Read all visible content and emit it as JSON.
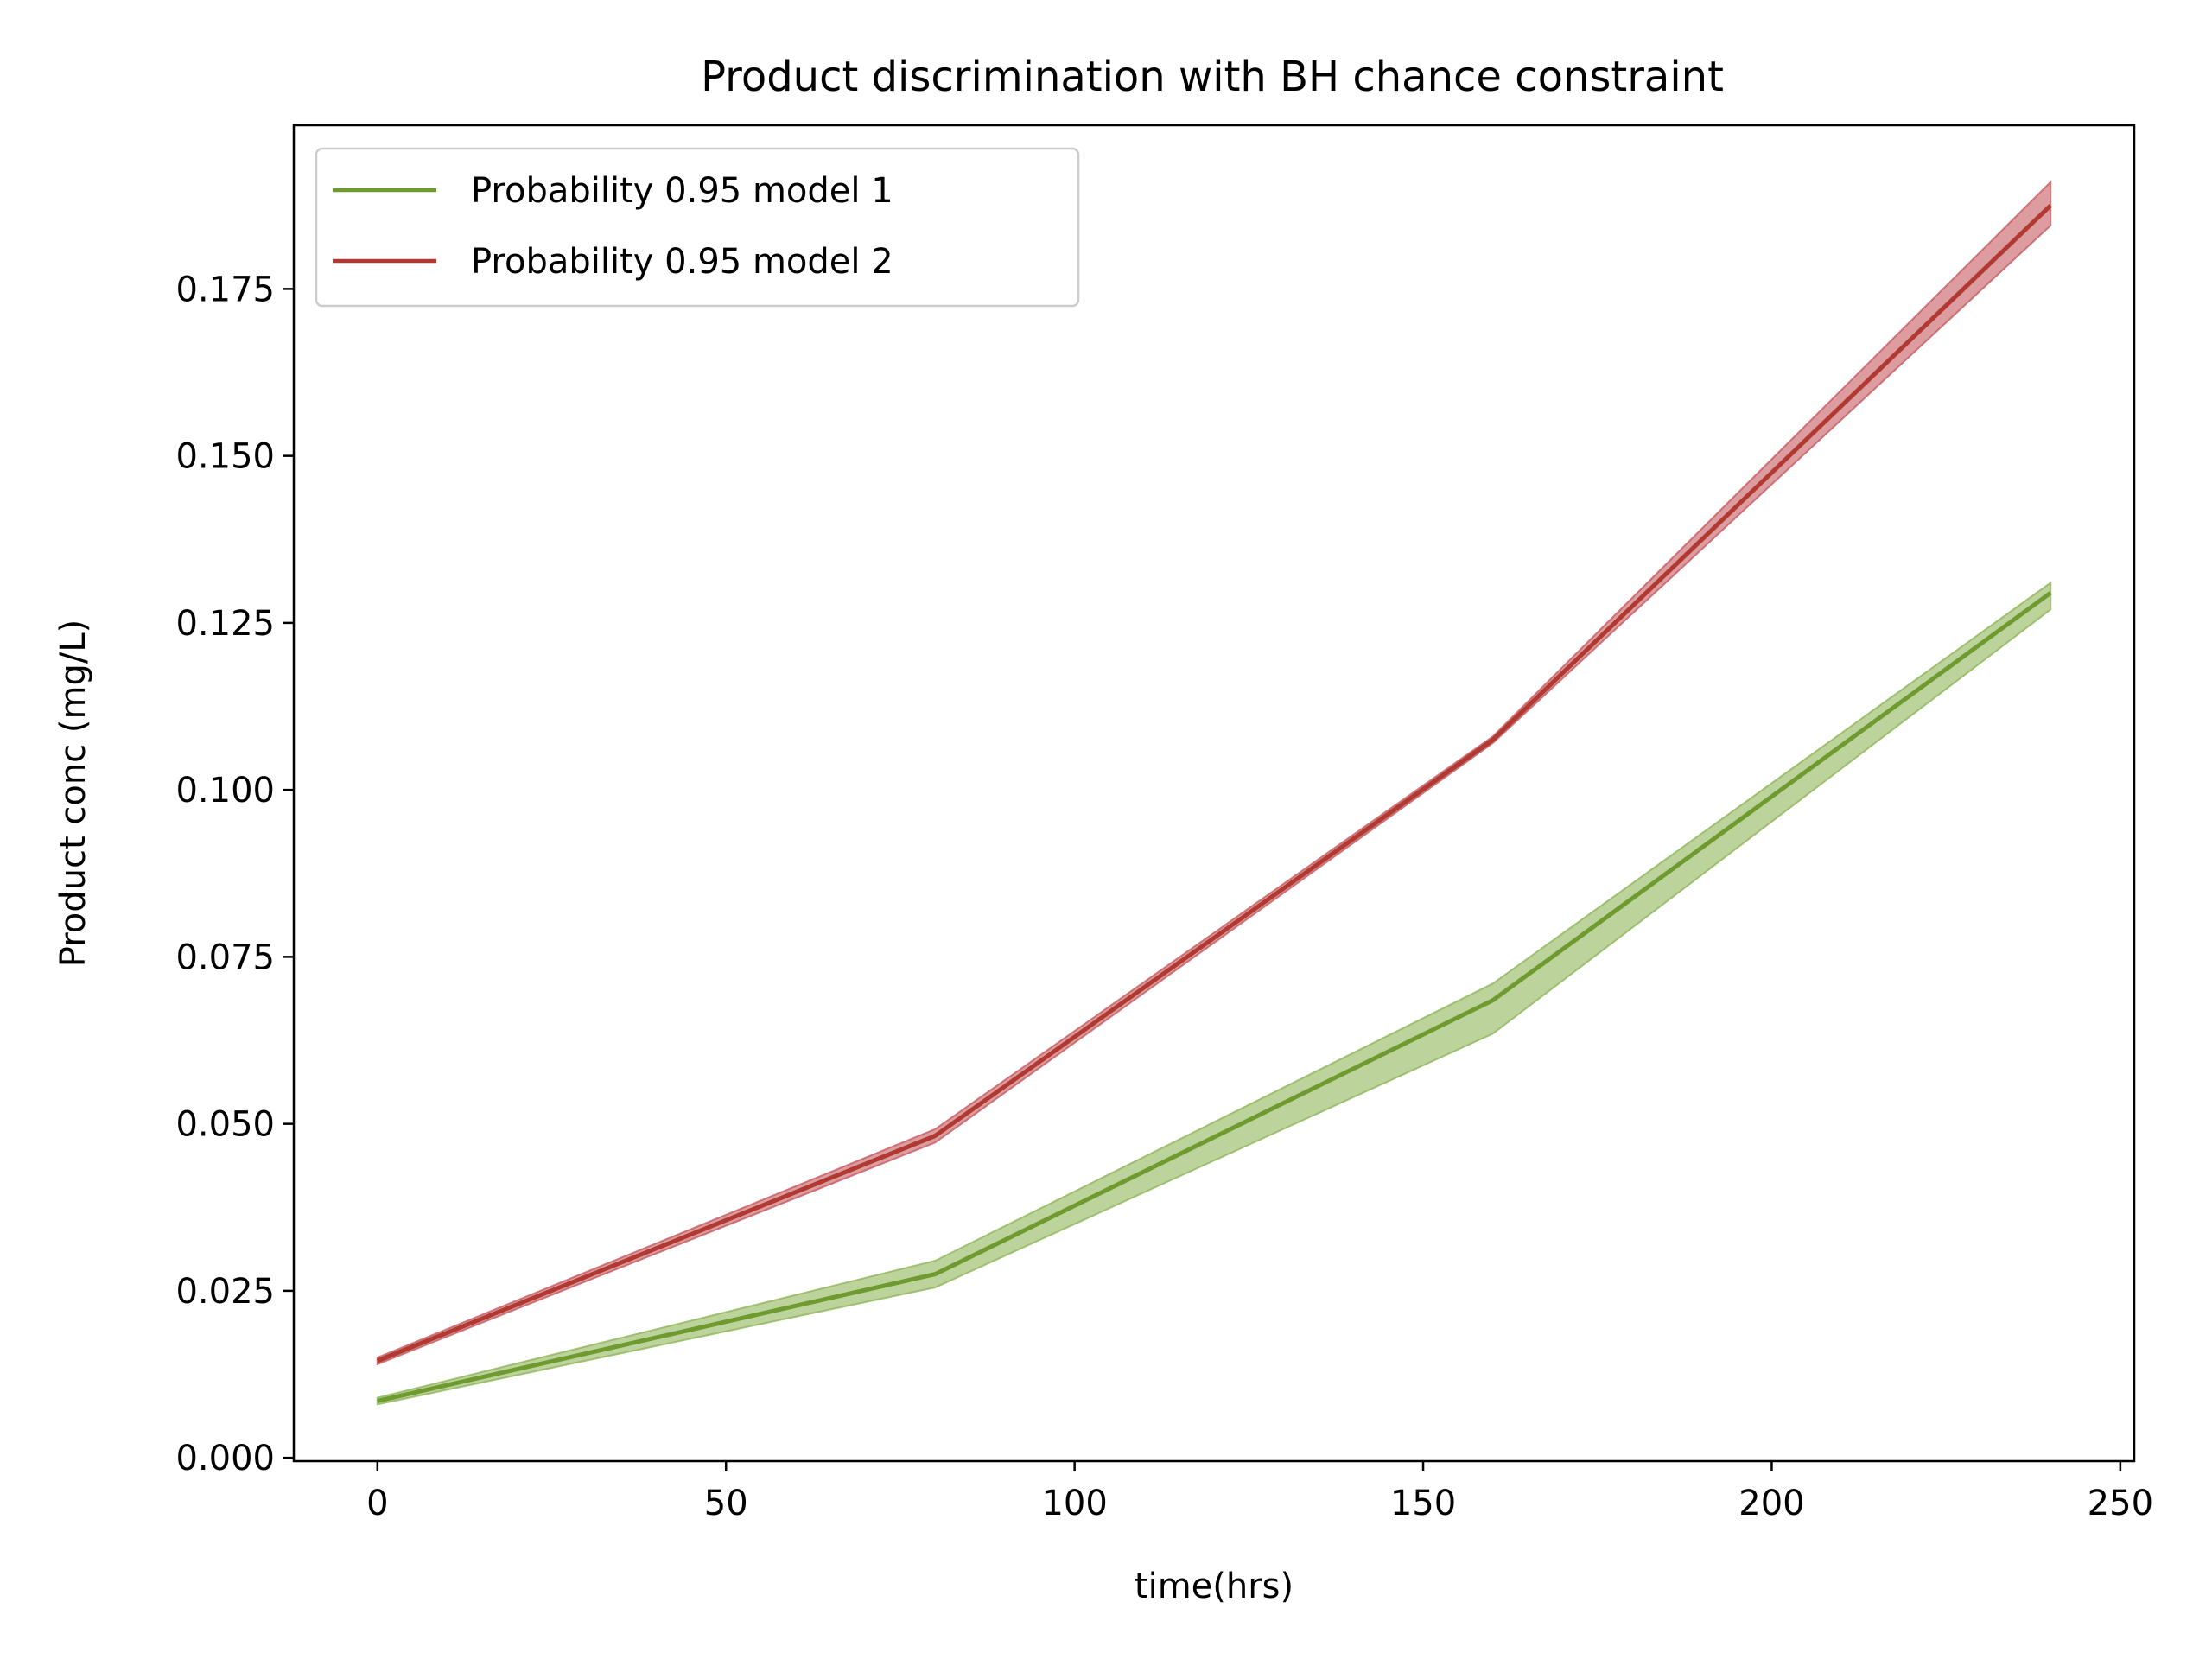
{
  "chart_data": {
    "type": "line",
    "title": "Product discrimination with BH chance constraint",
    "xlabel": "time(hrs)",
    "ylabel": "Product conc (mg/L)",
    "xlim": [
      -12,
      252
    ],
    "ylim": [
      -0.0005,
      0.1995
    ],
    "xticks": [
      0,
      50,
      100,
      150,
      200,
      250
    ],
    "xtick_labels": [
      "0",
      "50",
      "100",
      "150",
      "200",
      "250"
    ],
    "yticks": [
      0.0,
      0.025,
      0.05,
      0.075,
      0.1,
      0.125,
      0.15,
      0.175
    ],
    "ytick_labels": [
      "0.000",
      "0.025",
      "0.050",
      "0.075",
      "0.100",
      "0.125",
      "0.150",
      "0.175"
    ],
    "grid": false,
    "legend_position": "top-left",
    "x": [
      0,
      80,
      160,
      240
    ],
    "series": [
      {
        "name": "Probability 0.95 model 1",
        "color": "#6f9a30",
        "band_color": "#8fb55a",
        "values": [
          0.0085,
          0.0275,
          0.0685,
          0.1295
        ],
        "lower": [
          0.008,
          0.0255,
          0.0635,
          0.127
        ],
        "upper": [
          0.009,
          0.0295,
          0.071,
          0.131
        ]
      },
      {
        "name": "Probability 0.95 model 2",
        "color": "#b03a32",
        "band_color": "#c65a5f",
        "values": [
          0.0145,
          0.0482,
          0.1075,
          0.1875
        ],
        "lower": [
          0.014,
          0.0472,
          0.107,
          0.1845
        ],
        "upper": [
          0.015,
          0.0492,
          0.108,
          0.191
        ]
      }
    ]
  }
}
